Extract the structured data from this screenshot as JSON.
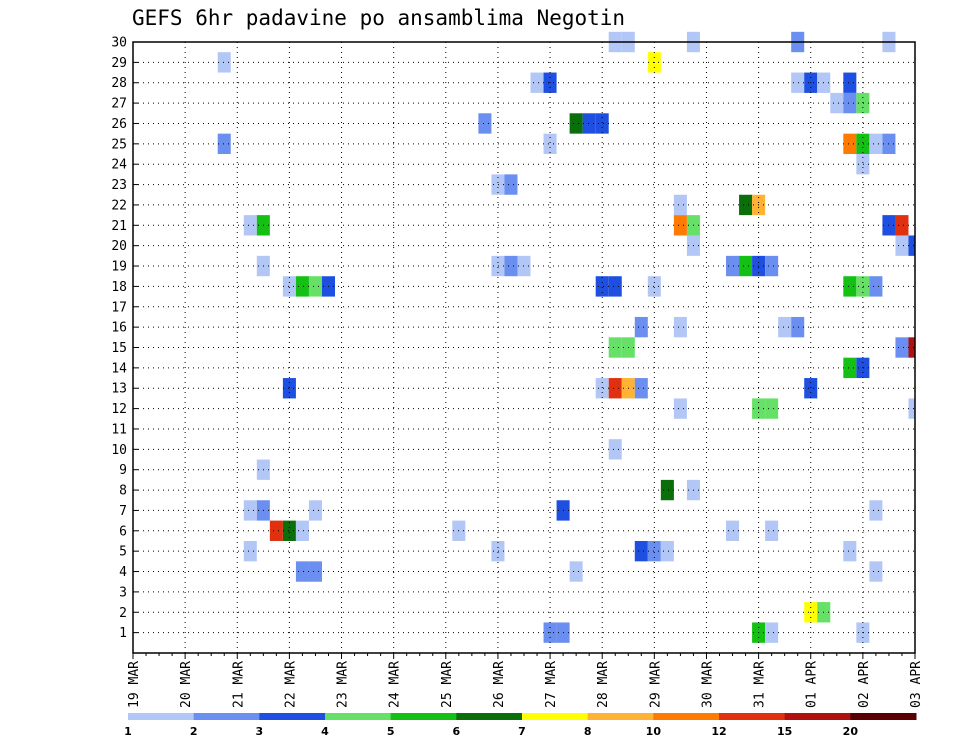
{
  "chart_data": {
    "type": "heatmap",
    "title": "GEFS 6hr padavine po ansamblima Negotin",
    "xlabel": "",
    "ylabel": "",
    "x_ticks": [
      "19 MAR",
      "20 MAR",
      "21 MAR",
      "22 MAR",
      "23 MAR",
      "24 MAR",
      "25 MAR",
      "26 MAR",
      "27 MAR",
      "28 MAR",
      "29 MAR",
      "30 MAR",
      "31 MAR",
      "01 APR",
      "02 APR",
      "03 APR"
    ],
    "x_unit": "6-hour step (4 per day), starting 19 MAR",
    "y_ticks": [
      1,
      2,
      3,
      4,
      5,
      6,
      7,
      8,
      9,
      10,
      11,
      12,
      13,
      14,
      15,
      16,
      17,
      18,
      19,
      20,
      21,
      22,
      23,
      24,
      25,
      26,
      27,
      28,
      29,
      30
    ],
    "xlim": [
      0,
      60
    ],
    "ylim": [
      0,
      30
    ],
    "grid": true,
    "legend_levels": [
      {
        "value": "1",
        "color": "#b3c7f7"
      },
      {
        "value": "2",
        "color": "#6b8ff0"
      },
      {
        "value": "3",
        "color": "#1f4fe0"
      },
      {
        "value": "4",
        "color": "#66e066"
      },
      {
        "value": "5",
        "color": "#13c013"
      },
      {
        "value": "6",
        "color": "#0a6e0a"
      },
      {
        "value": "7",
        "color": "#ffff00"
      },
      {
        "value": "8",
        "color": "#ffb233"
      },
      {
        "value": "10",
        "color": "#ff7a00"
      },
      {
        "value": "12",
        "color": "#e03010"
      },
      {
        "value": "15",
        "color": "#b01010"
      },
      {
        "value": "20",
        "color": "#5a0000"
      }
    ],
    "cells": [
      {
        "t": 37,
        "m": 30,
        "c": 0
      },
      {
        "t": 38,
        "m": 30,
        "c": 0
      },
      {
        "t": 43,
        "m": 30,
        "c": 0
      },
      {
        "t": 51,
        "m": 30,
        "c": 1
      },
      {
        "t": 58,
        "m": 30,
        "c": 0
      },
      {
        "t": 7,
        "m": 29,
        "c": 0
      },
      {
        "t": 40,
        "m": 29,
        "c": 6
      },
      {
        "t": 31,
        "m": 28,
        "c": 0
      },
      {
        "t": 32,
        "m": 28,
        "c": 2
      },
      {
        "t": 51,
        "m": 28,
        "c": 0
      },
      {
        "t": 52,
        "m": 28,
        "c": 2
      },
      {
        "t": 53,
        "m": 28,
        "c": 0
      },
      {
        "t": 55,
        "m": 28,
        "c": 2
      },
      {
        "t": 54,
        "m": 27,
        "c": 0
      },
      {
        "t": 55,
        "m": 27,
        "c": 1
      },
      {
        "t": 56,
        "m": 27,
        "c": 3
      },
      {
        "t": 27,
        "m": 26,
        "c": 1
      },
      {
        "t": 34,
        "m": 26,
        "c": 5
      },
      {
        "t": 35,
        "m": 26,
        "c": 2
      },
      {
        "t": 36,
        "m": 26,
        "c": 2
      },
      {
        "t": 7,
        "m": 25,
        "c": 1
      },
      {
        "t": 32,
        "m": 25,
        "c": 0
      },
      {
        "t": 55,
        "m": 25,
        "c": 8
      },
      {
        "t": 56,
        "m": 25,
        "c": 4
      },
      {
        "t": 57,
        "m": 25,
        "c": 0
      },
      {
        "t": 58,
        "m": 25,
        "c": 1
      },
      {
        "t": 56,
        "m": 24,
        "c": 0
      },
      {
        "t": 28,
        "m": 23,
        "c": 0
      },
      {
        "t": 29,
        "m": 23,
        "c": 1
      },
      {
        "t": 42,
        "m": 22,
        "c": 0
      },
      {
        "t": 47,
        "m": 22,
        "c": 5
      },
      {
        "t": 48,
        "m": 22,
        "c": 7
      },
      {
        "t": 9,
        "m": 21,
        "c": 0
      },
      {
        "t": 10,
        "m": 21,
        "c": 4
      },
      {
        "t": 42,
        "m": 21,
        "c": 8
      },
      {
        "t": 43,
        "m": 21,
        "c": 3
      },
      {
        "t": 58,
        "m": 21,
        "c": 2
      },
      {
        "t": 59,
        "m": 21,
        "c": 9
      },
      {
        "t": 43,
        "m": 20,
        "c": 0
      },
      {
        "t": 59,
        "m": 20,
        "c": 0
      },
      {
        "t": 60,
        "m": 20,
        "c": 2
      },
      {
        "t": 10,
        "m": 19,
        "c": 0
      },
      {
        "t": 28,
        "m": 19,
        "c": 0
      },
      {
        "t": 29,
        "m": 19,
        "c": 1
      },
      {
        "t": 30,
        "m": 19,
        "c": 0
      },
      {
        "t": 46,
        "m": 19,
        "c": 1
      },
      {
        "t": 47,
        "m": 19,
        "c": 4
      },
      {
        "t": 48,
        "m": 19,
        "c": 2
      },
      {
        "t": 49,
        "m": 19,
        "c": 1
      },
      {
        "t": 12,
        "m": 18,
        "c": 0
      },
      {
        "t": 13,
        "m": 18,
        "c": 4
      },
      {
        "t": 14,
        "m": 18,
        "c": 3
      },
      {
        "t": 15,
        "m": 18,
        "c": 2
      },
      {
        "t": 36,
        "m": 18,
        "c": 2
      },
      {
        "t": 37,
        "m": 18,
        "c": 2
      },
      {
        "t": 40,
        "m": 18,
        "c": 0
      },
      {
        "t": 55,
        "m": 18,
        "c": 4
      },
      {
        "t": 56,
        "m": 18,
        "c": 3
      },
      {
        "t": 57,
        "m": 18,
        "c": 1
      },
      {
        "t": 39,
        "m": 16,
        "c": 1
      },
      {
        "t": 42,
        "m": 16,
        "c": 0
      },
      {
        "t": 50,
        "m": 16,
        "c": 0
      },
      {
        "t": 51,
        "m": 16,
        "c": 1
      },
      {
        "t": 37,
        "m": 15,
        "c": 3
      },
      {
        "t": 38,
        "m": 15,
        "c": 3
      },
      {
        "t": 59,
        "m": 15,
        "c": 1
      },
      {
        "t": 60,
        "m": 15,
        "c": 10
      },
      {
        "t": 55,
        "m": 14,
        "c": 4
      },
      {
        "t": 56,
        "m": 14,
        "c": 2
      },
      {
        "t": 12,
        "m": 13,
        "c": 2
      },
      {
        "t": 36,
        "m": 13,
        "c": 0
      },
      {
        "t": 37,
        "m": 13,
        "c": 9
      },
      {
        "t": 38,
        "m": 13,
        "c": 7
      },
      {
        "t": 39,
        "m": 13,
        "c": 1
      },
      {
        "t": 52,
        "m": 13,
        "c": 2
      },
      {
        "t": 42,
        "m": 12,
        "c": 0
      },
      {
        "t": 48,
        "m": 12,
        "c": 3
      },
      {
        "t": 49,
        "m": 12,
        "c": 3
      },
      {
        "t": 60,
        "m": 12,
        "c": 0
      },
      {
        "t": 37,
        "m": 10,
        "c": 0
      },
      {
        "t": 10,
        "m": 9,
        "c": 0
      },
      {
        "t": 41,
        "m": 8,
        "c": 5
      },
      {
        "t": 43,
        "m": 8,
        "c": 0
      },
      {
        "t": 9,
        "m": 7,
        "c": 0
      },
      {
        "t": 10,
        "m": 7,
        "c": 1
      },
      {
        "t": 14,
        "m": 7,
        "c": 0
      },
      {
        "t": 33,
        "m": 7,
        "c": 2
      },
      {
        "t": 57,
        "m": 7,
        "c": 0
      },
      {
        "t": 11,
        "m": 6,
        "c": 9
      },
      {
        "t": 12,
        "m": 6,
        "c": 5
      },
      {
        "t": 13,
        "m": 6,
        "c": 0
      },
      {
        "t": 25,
        "m": 6,
        "c": 0
      },
      {
        "t": 46,
        "m": 6,
        "c": 0
      },
      {
        "t": 49,
        "m": 6,
        "c": 0
      },
      {
        "t": 9,
        "m": 5,
        "c": 0
      },
      {
        "t": 28,
        "m": 5,
        "c": 0
      },
      {
        "t": 39,
        "m": 5,
        "c": 2
      },
      {
        "t": 40,
        "m": 5,
        "c": 1
      },
      {
        "t": 41,
        "m": 5,
        "c": 0
      },
      {
        "t": 55,
        "m": 5,
        "c": 0
      },
      {
        "t": 13,
        "m": 4,
        "c": 1
      },
      {
        "t": 14,
        "m": 4,
        "c": 1
      },
      {
        "t": 34,
        "m": 4,
        "c": 0
      },
      {
        "t": 57,
        "m": 4,
        "c": 0
      },
      {
        "t": 52,
        "m": 2,
        "c": 6
      },
      {
        "t": 53,
        "m": 2,
        "c": 3
      },
      {
        "t": 32,
        "m": 1,
        "c": 1
      },
      {
        "t": 33,
        "m": 1,
        "c": 1
      },
      {
        "t": 48,
        "m": 1,
        "c": 4
      },
      {
        "t": 49,
        "m": 1,
        "c": 0
      },
      {
        "t": 56,
        "m": 1,
        "c": 0
      }
    ]
  }
}
